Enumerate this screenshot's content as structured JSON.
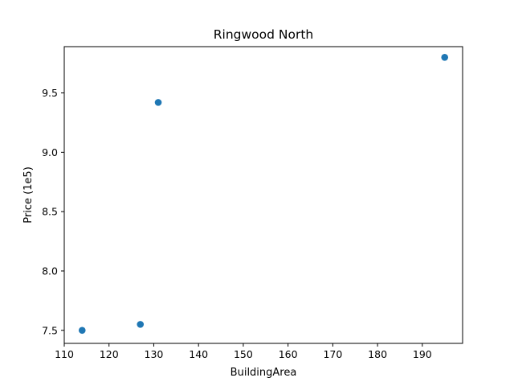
{
  "chart_data": {
    "type": "scatter",
    "title": "Ringwood North",
    "xlabel": "BuildingArea",
    "ylabel": "Price (1e5)",
    "xlim": [
      110,
      199
    ],
    "ylim": [
      7.39,
      9.89
    ],
    "xticks": [
      110,
      120,
      130,
      140,
      150,
      160,
      170,
      180,
      190
    ],
    "yticks": [
      7.5,
      8.0,
      8.5,
      9.0,
      9.5
    ],
    "xtick_labels": [
      "110",
      "120",
      "130",
      "140",
      "150",
      "160",
      "170",
      "180",
      "190"
    ],
    "ytick_labels": [
      "7.5",
      "8.0",
      "8.5",
      "9.0",
      "9.5"
    ],
    "grid": false,
    "marker_color": "#1f77b4",
    "series": [
      {
        "x": [
          114,
          127,
          131,
          195
        ],
        "y": [
          7.5,
          7.55,
          9.42,
          9.8
        ]
      }
    ]
  }
}
